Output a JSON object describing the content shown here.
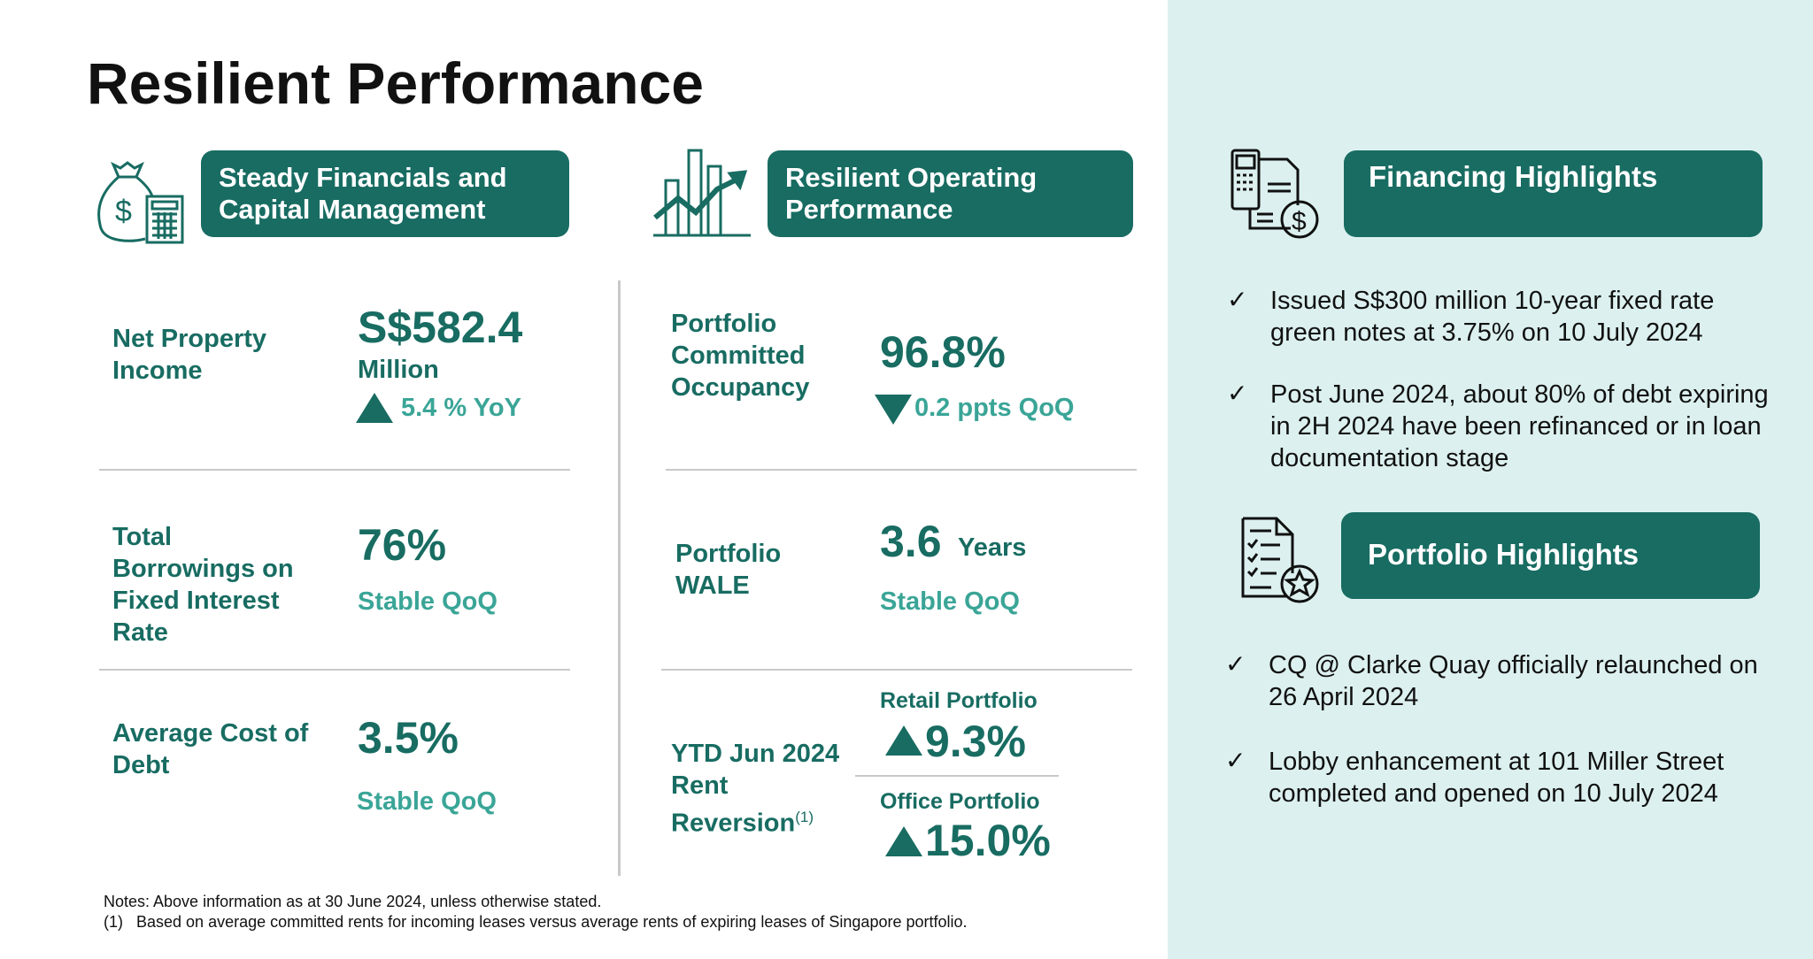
{
  "title": "Resilient Performance",
  "sections": {
    "financials": "Steady Financials and Capital Management",
    "operating": "Resilient Operating Performance",
    "financing": "Financing Highlights",
    "portfolio": "Portfolio Highlights"
  },
  "financials": {
    "npi": {
      "label": "Net Property Income",
      "value": "S$582.4",
      "unit": "Million",
      "change": "5.4 % YoY"
    },
    "fixed": {
      "label": "Total Borrowings on Fixed Interest Rate",
      "value": "76%",
      "change": "Stable QoQ"
    },
    "cost": {
      "label": "Average Cost of Debt",
      "value": "3.5%",
      "change": "Stable QoQ"
    }
  },
  "operating": {
    "occupancy": {
      "label": "Portfolio Committed Occupancy",
      "value": "96.8%",
      "change": "0.2 ppts QoQ"
    },
    "wale": {
      "label": "Portfolio WALE",
      "value": "3.6",
      "unit": "Years",
      "change": "Stable QoQ"
    },
    "reversion": {
      "label": "YTD Jun 2024 Rent Reversion",
      "footnote": "(1)",
      "retail_label": "Retail Portfolio",
      "retail_value": "9.3%",
      "office_label": "Office Portfolio",
      "office_value": "15.0%"
    }
  },
  "financing_bullets": [
    "Issued S$300 million 10-year fixed rate green notes at 3.75% on 10 July 2024",
    "Post June 2024, about 80% of debt expiring in 2H 2024 have been refinanced or in loan documentation stage"
  ],
  "portfolio_bullets": [
    "CQ @ Clarke Quay officially relaunched on 26 April 2024",
    "Lobby enhancement at 101 Miller Street completed and opened on 10 July 2024"
  ],
  "check": "✓",
  "notes": [
    "Notes: Above information as at 30 June 2024, unless otherwise stated.",
    "(1)   Based on average committed rents for incoming leases versus average rents of expiring leases of Singapore portfolio."
  ],
  "colors": {
    "primary": "#186c62",
    "accent": "#3aa597",
    "panel": "#dcf1ef"
  }
}
